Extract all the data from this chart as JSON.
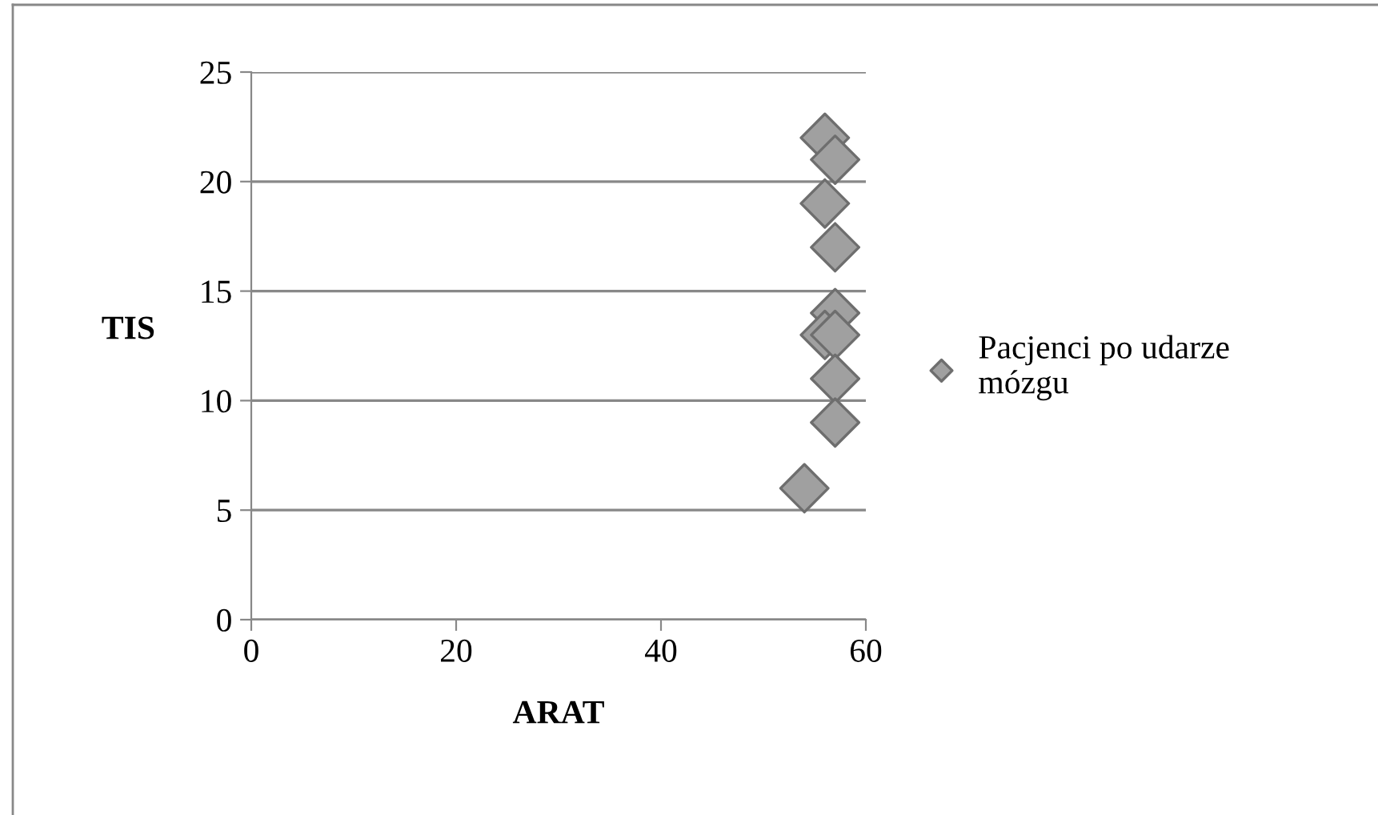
{
  "chart_data": {
    "type": "scatter",
    "xlabel": "ARAT",
    "ylabel": "TIS",
    "series": [
      {
        "name": "Pacjenci po udarze mózgu",
        "color": "#a0a0a0",
        "x": [
          56,
          57,
          56,
          57,
          57,
          56,
          57,
          57,
          57,
          54
        ],
        "values": [
          22,
          21,
          19,
          17,
          14,
          13,
          13,
          11,
          9,
          6
        ]
      }
    ],
    "xlim": [
      0,
      60
    ],
    "xticks": [
      0,
      20,
      40,
      60
    ],
    "ylim": [
      0,
      25
    ],
    "yticks": [
      0,
      5,
      10,
      15,
      20,
      25
    ],
    "grid": "y",
    "legend": "right",
    "marker": "diamond"
  }
}
